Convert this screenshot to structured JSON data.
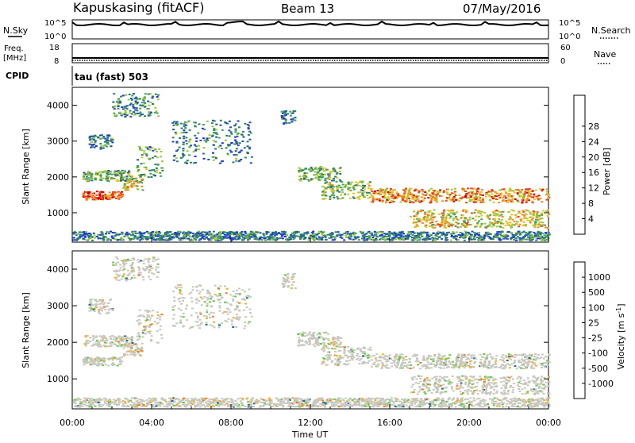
{
  "header": {
    "station": "Kapuskasing (fitACF)",
    "beam": "Beam 13",
    "date": "07/May/2016"
  },
  "strips": {
    "nsky_label": "N.Sky",
    "nsky_ticks": [
      "10^5",
      "10^0"
    ],
    "nsearch_label": "N.Search",
    "nsearch_ticks": [
      "10^5",
      "10^0"
    ],
    "freq_label": [
      "Freq.",
      "[MHz]"
    ],
    "freq_ticks": [
      "18",
      "8"
    ],
    "nave_label": "Nave",
    "nave_ticks": [
      "60",
      "0"
    ],
    "cpid_label": "CPID",
    "cpid_text": "tau (fast) 503"
  },
  "chart_data": [
    {
      "type": "heatmap",
      "name": "power",
      "ylabel": "Slant Range [km]",
      "xlabel": "Time UT",
      "x_ticks": [
        "00:00",
        "04:00",
        "08:00",
        "12:00",
        "16:00",
        "20:00",
        "00:00"
      ],
      "y_ticks": [
        1000,
        2000,
        3000,
        4000
      ],
      "xlim_hours": [
        0,
        24
      ],
      "ylim_km": [
        180,
        4500
      ],
      "colorbar": {
        "label": "Power [dB]",
        "ticks": [
          "4",
          "8",
          "12",
          "16",
          "20",
          "24",
          "28"
        ],
        "colors": [
          "#1f2ff0",
          "#1f4fb4",
          "#2e7d6a",
          "#4aa05a",
          "#9ac93a",
          "#e8c02a",
          "#f08a1e",
          "#e84818",
          "#d00000"
        ]
      },
      "echo_bands": [
        {
          "t": [
            0.5,
            2.5
          ],
          "r": [
            1380,
            1620
          ],
          "level": 0.9
        },
        {
          "t": [
            2.5,
            3.5
          ],
          "r": [
            1650,
            2000
          ],
          "level": 0.6
        },
        {
          "t": [
            0.5,
            3.0
          ],
          "r": [
            1900,
            2200
          ],
          "level": 0.4
        },
        {
          "t": [
            0.8,
            2.0
          ],
          "r": [
            2800,
            3200
          ],
          "level": 0.25
        },
        {
          "t": [
            2.0,
            4.3
          ],
          "r": [
            3700,
            4350
          ],
          "level": 0.3
        },
        {
          "t": [
            3.2,
            4.5
          ],
          "r": [
            2000,
            2900
          ],
          "level": 0.35
        },
        {
          "t": [
            5.0,
            9.0
          ],
          "r": [
            2400,
            3600
          ],
          "level": 0.25
        },
        {
          "t": [
            10.5,
            11.2
          ],
          "r": [
            3500,
            3900
          ],
          "level": 0.2
        },
        {
          "t": [
            11.3,
            13.5
          ],
          "r": [
            1900,
            2300
          ],
          "level": 0.4
        },
        {
          "t": [
            12.5,
            15.0
          ],
          "r": [
            1400,
            1900
          ],
          "level": 0.45
        },
        {
          "t": [
            15.0,
            24.0
          ],
          "r": [
            1300,
            1700
          ],
          "level": 0.75
        },
        {
          "t": [
            17.0,
            24.0
          ],
          "r": [
            600,
            1100
          ],
          "level": 0.6
        },
        {
          "t": [
            0.0,
            24.0
          ],
          "r": [
            250,
            500
          ],
          "level": 0.25
        }
      ]
    },
    {
      "type": "heatmap",
      "name": "velocity",
      "ylabel": "Slant Range [km]",
      "xlabel": "Time UT",
      "x_ticks": [
        "00:00",
        "04:00",
        "08:00",
        "12:00",
        "16:00",
        "20:00",
        "00:00"
      ],
      "y_ticks": [
        1000,
        2000,
        3000,
        4000
      ],
      "xlim_hours": [
        0,
        24
      ],
      "ylim_km": [
        180,
        4500
      ],
      "colorbar": {
        "label": "Velocity [m s^-1]",
        "ticks": [
          "1000",
          "500",
          "100",
          "25",
          "-25",
          "-100",
          "-500",
          "-1000"
        ],
        "colors": [
          "#1f40c8",
          "#2a6b8c",
          "#2f8a57",
          "#6cc84a",
          "#c8c8c0",
          "#f0b030",
          "#ef7a20",
          "#e84020",
          "#e00000"
        ]
      }
    }
  ]
}
